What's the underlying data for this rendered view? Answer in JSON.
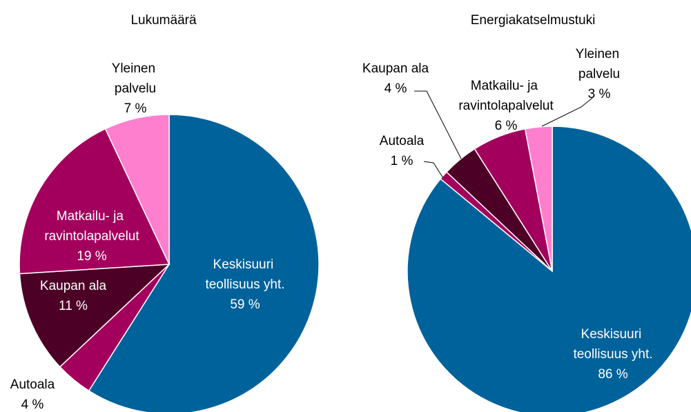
{
  "chart_data": [
    {
      "type": "pie",
      "title": "Lukumäärä",
      "categories": [
        "Keskisuuri teollisuus yht.",
        "Autoala",
        "Kaupan ala",
        "Matkailu- ja ravintolapalvelut",
        "Yleinen palvelu"
      ],
      "values": [
        59,
        4,
        11,
        19,
        7
      ],
      "value_labels": [
        "59 %",
        "4 %",
        "11 %",
        "19 %",
        "7 %"
      ],
      "colors": [
        "#00629b",
        "#a3005d",
        "#4d0026",
        "#a3005d",
        "#ff7fcf"
      ]
    },
    {
      "type": "pie",
      "title": "Energiakatselmustuki",
      "categories": [
        "Keskisuuri teollisuus yht.",
        "Autoala",
        "Kaupan ala",
        "Matkailu- ja ravintolapalvelut",
        "Yleinen palvelu"
      ],
      "values": [
        86,
        1,
        4,
        6,
        3
      ],
      "value_labels": [
        "86 %",
        "1 %",
        "4 %",
        "6 %",
        "3 %"
      ],
      "colors": [
        "#00629b",
        "#a3005d",
        "#4d0026",
        "#a3005d",
        "#ff7fcf"
      ]
    }
  ]
}
